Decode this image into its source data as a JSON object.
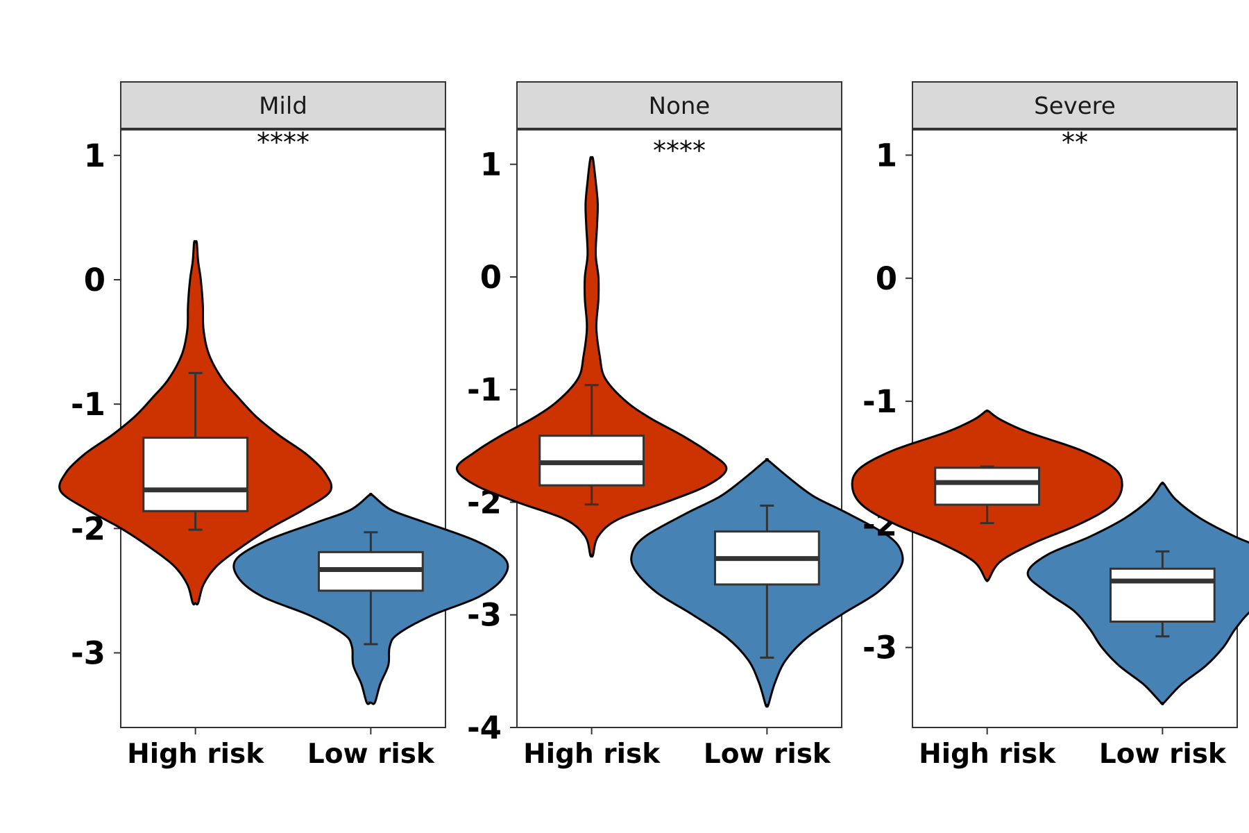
{
  "colors": {
    "high_risk": "#CC3300",
    "low_risk": "#4682B4",
    "box": "#FFFFFF",
    "strip": "#D9D9D9"
  },
  "chart_data": [
    {
      "type": "violin",
      "facet": "Mild",
      "significance": "****",
      "categories": [
        "High risk",
        "Low risk"
      ],
      "ylim": [
        -3.6,
        1.2
      ],
      "yticks": [
        -3,
        -2,
        -1,
        0,
        1
      ],
      "series": [
        {
          "name": "High risk",
          "min": -2.6,
          "max": 0.3,
          "box": {
            "q1": -1.86,
            "median": -1.69,
            "q3": -1.27,
            "whisker_low": -2.01,
            "whisker_high": -0.75
          },
          "density": [
            [
              -2.6,
              0.02
            ],
            [
              -2.45,
              0.06
            ],
            [
              -2.3,
              0.16
            ],
            [
              -2.15,
              0.34
            ],
            [
              -2.0,
              0.55
            ],
            [
              -1.85,
              0.8
            ],
            [
              -1.7,
              1.0
            ],
            [
              -1.55,
              0.96
            ],
            [
              -1.4,
              0.82
            ],
            [
              -1.25,
              0.62
            ],
            [
              -1.1,
              0.45
            ],
            [
              -0.95,
              0.32
            ],
            [
              -0.8,
              0.2
            ],
            [
              -0.6,
              0.1
            ],
            [
              -0.4,
              0.06
            ],
            [
              -0.2,
              0.055
            ],
            [
              0.0,
              0.04
            ],
            [
              0.15,
              0.02
            ],
            [
              0.3,
              0.01
            ]
          ]
        },
        {
          "name": "Low risk",
          "min": -3.4,
          "max": -1.73,
          "box": {
            "q1": -2.5,
            "median": -2.33,
            "q3": -2.19,
            "whisker_low": -2.93,
            "whisker_high": -2.03
          },
          "density": [
            [
              -3.4,
              0.03
            ],
            [
              -3.25,
              0.07
            ],
            [
              -3.1,
              0.13
            ],
            [
              -2.95,
              0.14
            ],
            [
              -2.85,
              0.2
            ],
            [
              -2.7,
              0.45
            ],
            [
              -2.55,
              0.8
            ],
            [
              -2.4,
              0.98
            ],
            [
              -2.25,
              1.0
            ],
            [
              -2.1,
              0.78
            ],
            [
              -1.95,
              0.4
            ],
            [
              -1.85,
              0.15
            ],
            [
              -1.73,
              0.01
            ]
          ]
        }
      ]
    },
    {
      "type": "violin",
      "facet": "None",
      "significance": "****",
      "categories": [
        "High risk",
        "Low risk"
      ],
      "ylim": [
        -4.0,
        1.3
      ],
      "yticks": [
        -4,
        -3,
        -2,
        -1,
        0,
        1
      ],
      "series": [
        {
          "name": "High risk",
          "min": -2.47,
          "max": 1.05,
          "box": {
            "q1": -1.85,
            "median": -1.65,
            "q3": -1.41,
            "whisker_low": -2.02,
            "whisker_high": -0.96
          },
          "density": [
            [
              -2.47,
              0.01
            ],
            [
              -2.3,
              0.05
            ],
            [
              -2.15,
              0.2
            ],
            [
              -2.0,
              0.55
            ],
            [
              -1.85,
              0.86
            ],
            [
              -1.7,
              1.0
            ],
            [
              -1.55,
              0.86
            ],
            [
              -1.4,
              0.66
            ],
            [
              -1.25,
              0.43
            ],
            [
              -1.1,
              0.25
            ],
            [
              -0.9,
              0.1
            ],
            [
              -0.7,
              0.06
            ],
            [
              -0.45,
              0.035
            ],
            [
              -0.2,
              0.05
            ],
            [
              0.0,
              0.05
            ],
            [
              0.2,
              0.03
            ],
            [
              0.45,
              0.04
            ],
            [
              0.65,
              0.045
            ],
            [
              0.85,
              0.03
            ],
            [
              1.05,
              0.01
            ]
          ]
        },
        {
          "name": "Low risk",
          "min": -3.8,
          "max": -1.63,
          "box": {
            "q1": -2.73,
            "median": -2.5,
            "q3": -2.26,
            "whisker_low": -3.38,
            "whisker_high": -2.03
          },
          "density": [
            [
              -3.8,
              0.01
            ],
            [
              -3.6,
              0.06
            ],
            [
              -3.4,
              0.14
            ],
            [
              -3.2,
              0.3
            ],
            [
              -3.0,
              0.55
            ],
            [
              -2.8,
              0.82
            ],
            [
              -2.6,
              0.98
            ],
            [
              -2.45,
              1.0
            ],
            [
              -2.3,
              0.9
            ],
            [
              -2.1,
              0.6
            ],
            [
              -1.95,
              0.35
            ],
            [
              -1.8,
              0.18
            ],
            [
              -1.63,
              0.01
            ]
          ]
        }
      ]
    },
    {
      "type": "violin",
      "facet": "Severe",
      "significance": "**",
      "categories": [
        "High risk",
        "Low risk"
      ],
      "ylim": [
        -3.65,
        1.2
      ],
      "yticks": [
        -3,
        -2,
        -1,
        0,
        1
      ],
      "series": [
        {
          "name": "High risk",
          "min": -2.45,
          "max": -1.08,
          "box": {
            "q1": -1.84,
            "median": -1.66,
            "q3": -1.54,
            "whisker_low": -1.99,
            "whisker_high": -1.53
          },
          "density": [
            [
              -2.45,
              0.01
            ],
            [
              -2.3,
              0.1
            ],
            [
              -2.15,
              0.35
            ],
            [
              -2.0,
              0.68
            ],
            [
              -1.85,
              0.92
            ],
            [
              -1.7,
              1.0
            ],
            [
              -1.55,
              0.95
            ],
            [
              -1.4,
              0.7
            ],
            [
              -1.25,
              0.3
            ],
            [
              -1.15,
              0.1
            ],
            [
              -1.08,
              0.01
            ]
          ]
        },
        {
          "name": "Low risk",
          "min": -3.45,
          "max": -1.67,
          "box": {
            "q1": -2.79,
            "median": -2.46,
            "q3": -2.36,
            "whisker_low": -2.91,
            "whisker_high": -2.22
          },
          "density": [
            [
              -3.45,
              0.01
            ],
            [
              -3.3,
              0.14
            ],
            [
              -3.15,
              0.32
            ],
            [
              -3.0,
              0.45
            ],
            [
              -2.85,
              0.54
            ],
            [
              -2.7,
              0.66
            ],
            [
              -2.55,
              0.86
            ],
            [
              -2.4,
              1.0
            ],
            [
              -2.25,
              0.86
            ],
            [
              -2.1,
              0.54
            ],
            [
              -1.95,
              0.28
            ],
            [
              -1.8,
              0.1
            ],
            [
              -1.67,
              0.01
            ]
          ]
        }
      ]
    }
  ]
}
